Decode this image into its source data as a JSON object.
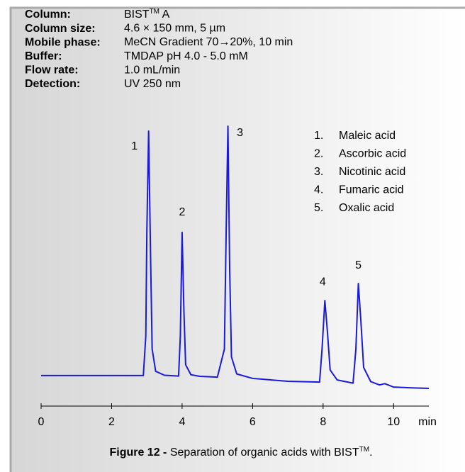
{
  "header": {
    "rows": [
      {
        "label": "Column:",
        "value": "BIST",
        "sup": "TM",
        "after": " A"
      },
      {
        "label": "Column size:",
        "value": "4.6 × 150 mm, 5 µm"
      },
      {
        "label": "Mobile phase:",
        "value": "MeCN Gradient 70→20%, 10 min"
      },
      {
        "label": "Buffer:",
        "value": "TMDAP pH 4.0 - 5.0 mM"
      },
      {
        "label": "Flow rate:",
        "value": "1.0 mL/min"
      },
      {
        "label": "Detection:",
        "value": "UV 250 nm"
      }
    ]
  },
  "chart_data": {
    "type": "line",
    "x_label": "min",
    "xlim": [
      0,
      11
    ],
    "xticks": [
      0,
      2,
      4,
      6,
      8,
      10
    ],
    "ylim": [
      0,
      100
    ],
    "series": [
      {
        "color": "#1a1adc",
        "x": [
          0,
          1,
          2,
          2.9,
          2.97,
          3.0,
          3.05,
          3.1,
          3.15,
          3.25,
          3.5,
          3.9,
          3.95,
          4.0,
          4.05,
          4.1,
          4.25,
          4.5,
          5.0,
          5.2,
          5.25,
          5.3,
          5.35,
          5.4,
          5.55,
          6,
          7,
          7.9,
          7.97,
          8.05,
          8.12,
          8.2,
          8.4,
          8.85,
          8.93,
          9.0,
          9.07,
          9.15,
          9.35,
          9.6,
          9.75,
          10,
          10.5,
          11
        ],
        "values": [
          4.9,
          4.9,
          4.9,
          4.9,
          20,
          60,
          98.1,
          55,
          15,
          6.5,
          5,
          4.7,
          20,
          59.5,
          30,
          9,
          5.2,
          4.6,
          4.3,
          15,
          60,
          100,
          45,
          12,
          5.5,
          3.8,
          2.7,
          2.4,
          15,
          33.5,
          22,
          7,
          3.2,
          2.0,
          15,
          40,
          26,
          8,
          2.6,
          1.3,
          1.8,
          0.5,
          0.2,
          0
        ]
      }
    ],
    "peak_labels": [
      {
        "text": "1",
        "x": 3.05,
        "y": 98.1
      },
      {
        "text": "2",
        "x": 4.0,
        "y": 59.5
      },
      {
        "text": "3",
        "x": 5.3,
        "y": 100
      },
      {
        "text": "4",
        "x": 8.05,
        "y": 33.5
      },
      {
        "text": "5",
        "x": 9.0,
        "y": 40
      }
    ],
    "legend": [
      {
        "num": "1.",
        "name": "Maleic acid"
      },
      {
        "num": "2.",
        "name": "Ascorbic acid"
      },
      {
        "num": "3.",
        "name": "Nicotinic acid"
      },
      {
        "num": "4.",
        "name": "Fumaric acid"
      },
      {
        "num": "5.",
        "name": "Oxalic acid"
      }
    ]
  },
  "caption": {
    "label": "Figure 12 -",
    "text": " Separation of organic  acids with BIST",
    "sup": "TM",
    "end": "."
  }
}
